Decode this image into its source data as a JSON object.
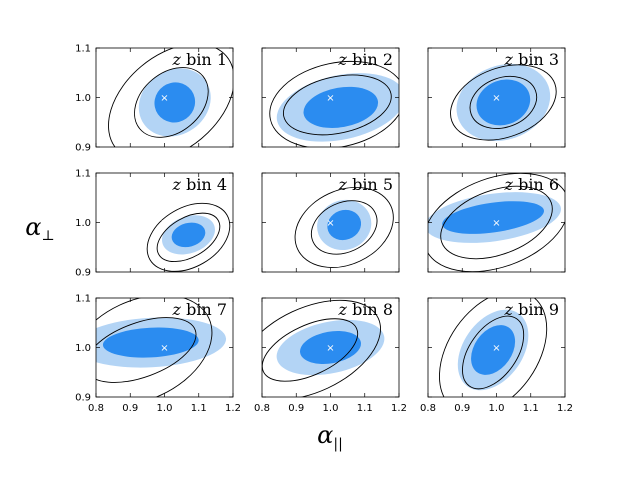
{
  "chart_data": {
    "type": "scatter",
    "layout": "3x3 grid of constraint panels, shared axes",
    "xlabel_symbol": "α",
    "xlabel_subscript": "||",
    "ylabel_symbol": "α",
    "ylabel_subscript": "⊥",
    "xlim": [
      0.8,
      1.2
    ],
    "ylim": [
      0.9,
      1.1
    ],
    "xticks": [
      0.8,
      0.9,
      1.0,
      1.1,
      1.2
    ],
    "yticks": [
      0.9,
      1.0,
      1.1
    ],
    "xtick_labels": [
      "0.8",
      "0.9",
      "1.0",
      "1.1",
      "1.2"
    ],
    "ytick_labels": [
      "0.9",
      "1.0",
      "1.1"
    ],
    "fiducial_marker": "×",
    "fiducial": [
      1.0,
      1.0
    ],
    "colors": {
      "inner_filled": "#2b8cf0",
      "outer_filled": "#b3d4f5",
      "contour_lines": "#000000",
      "marker": "#ffffff"
    },
    "panels": [
      {
        "label_italic": "z",
        "label_rest": " bin 1",
        "filled": {
          "center": [
            1.03,
            0.99
          ],
          "inner": [
            0.06,
            0.04,
            -35
          ],
          "outer": [
            0.11,
            0.065,
            -35
          ]
        },
        "lines": {
          "center": [
            1.02,
            0.99
          ],
          "inner": [
            0.12,
            0.06,
            -40
          ],
          "outer": [
            0.21,
            0.095,
            -40
          ]
        }
      },
      {
        "label_italic": "z",
        "label_rest": " bin 2",
        "filled": {
          "center": [
            1.03,
            0.98
          ],
          "inner": [
            0.11,
            0.04,
            -10
          ],
          "outer": [
            0.19,
            0.065,
            -12
          ]
        },
        "lines": {
          "center": [
            1.02,
            0.985
          ],
          "inner": [
            0.16,
            0.057,
            -12
          ],
          "outer": [
            0.2,
            0.085,
            -12
          ]
        }
      },
      {
        "label_italic": "z",
        "label_rest": " bin 3",
        "filled": {
          "center": [
            1.02,
            0.99
          ],
          "inner": [
            0.08,
            0.045,
            -20
          ],
          "outer": [
            0.14,
            0.075,
            -20
          ]
        },
        "lines": {
          "center": [
            1.02,
            0.99
          ],
          "inner": [
            0.1,
            0.05,
            -20
          ],
          "outer": [
            0.16,
            0.07,
            -20
          ]
        }
      },
      {
        "label_italic": "z",
        "label_rest": " bin 4",
        "filled": {
          "center": [
            1.07,
            0.975
          ],
          "inner": [
            0.05,
            0.024,
            -15
          ],
          "outer": [
            0.08,
            0.037,
            -20
          ]
        },
        "lines": {
          "center": [
            1.07,
            0.97
          ],
          "inner": [
            0.1,
            0.04,
            -30
          ],
          "outer": [
            0.13,
            0.06,
            -30
          ]
        }
      },
      {
        "label_italic": "z",
        "label_rest": " bin 5",
        "filled": {
          "center": [
            1.04,
            0.995
          ],
          "inner": [
            0.05,
            0.03,
            -20
          ],
          "outer": [
            0.08,
            0.05,
            -20
          ]
        },
        "lines": {
          "center": [
            1.04,
            0.99
          ],
          "inner": [
            0.1,
            0.05,
            -25
          ],
          "outer": [
            0.15,
            0.075,
            -25
          ]
        }
      },
      {
        "label_italic": "z",
        "label_rest": " bin 6",
        "filled": {
          "center": [
            0.99,
            1.01
          ],
          "inner": [
            0.15,
            0.03,
            -8
          ],
          "outer": [
            0.2,
            0.048,
            -8
          ]
        },
        "lines": {
          "center": [
            1.0,
            1.0
          ],
          "inner": [
            0.17,
            0.065,
            -20
          ],
          "outer": [
            0.22,
            0.09,
            -20
          ]
        }
      },
      {
        "label_italic": "z",
        "label_rest": " bin 7",
        "filled": {
          "center": [
            0.96,
            1.01
          ],
          "inner": [
            0.14,
            0.03,
            -3
          ],
          "outer": [
            0.22,
            0.05,
            -3
          ]
        },
        "lines": {
          "center": [
            0.93,
            0.995
          ],
          "inner": [
            0.17,
            0.055,
            -20
          ],
          "outer": [
            0.22,
            0.1,
            -25
          ]
        }
      },
      {
        "label_italic": "z",
        "label_rest": " bin 8",
        "filled": {
          "center": [
            1.0,
            1.0
          ],
          "inner": [
            0.09,
            0.032,
            -10
          ],
          "outer": [
            0.16,
            0.052,
            -12
          ]
        },
        "lines": {
          "center": [
            0.94,
            0.995
          ],
          "inner": [
            0.15,
            0.05,
            -25
          ],
          "outer": [
            0.22,
            0.085,
            -25
          ]
        }
      },
      {
        "label_italic": "z",
        "label_rest": " bin 9",
        "filled": {
          "center": [
            0.99,
            0.995
          ],
          "inner": [
            0.08,
            0.038,
            -55
          ],
          "outer": [
            0.13,
            0.06,
            -55
          ]
        },
        "lines": {
          "center": [
            0.99,
            0.99
          ],
          "inner": [
            0.12,
            0.048,
            -55
          ],
          "outer": [
            0.2,
            0.09,
            -55
          ]
        }
      }
    ]
  }
}
